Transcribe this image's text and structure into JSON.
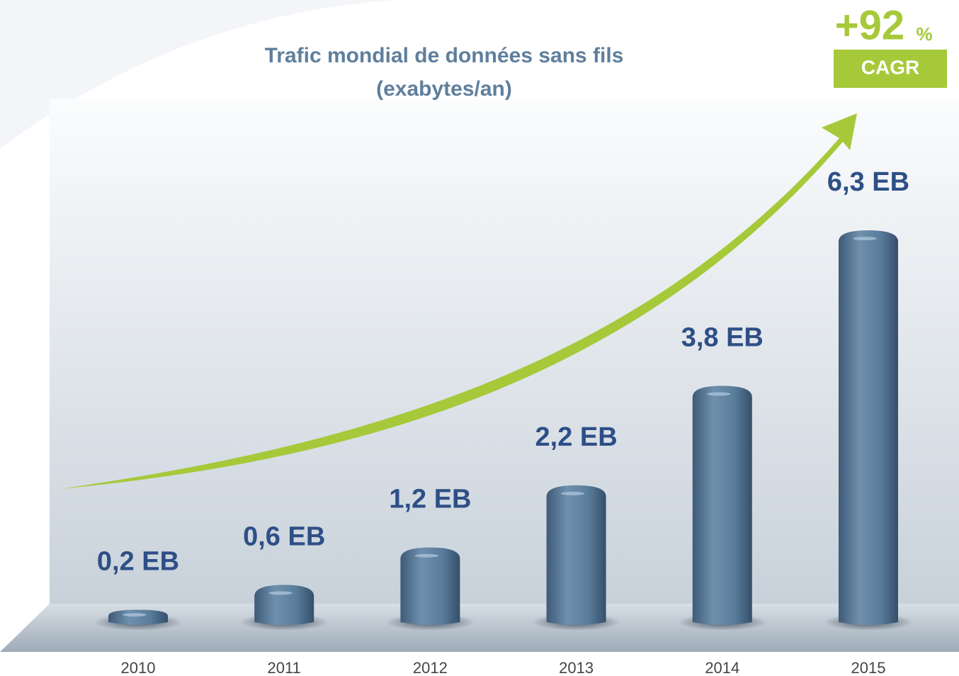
{
  "chart_data": {
    "type": "bar",
    "title": "Trafic mondial de données sans fils",
    "subtitle": "(exabytes/an)",
    "categories": [
      "2010",
      "2011",
      "2012",
      "2013",
      "2014",
      "2015"
    ],
    "values": [
      0.2,
      0.6,
      1.2,
      2.2,
      3.8,
      6.3
    ],
    "value_labels": [
      "0,2 EB",
      "0,6 EB",
      "1,2 EB",
      "2,2 EB",
      "3,8 EB",
      "6,3 EB"
    ],
    "color": "#5a7d9c",
    "badge": {
      "number": "+92",
      "unit": "%",
      "label": "CAGR"
    }
  }
}
